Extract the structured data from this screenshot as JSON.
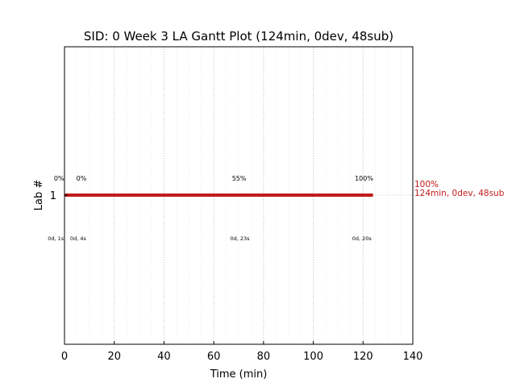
{
  "chart_data": {
    "type": "bar",
    "title": "SID: 0 Week 3 LA Gantt Plot (124min, 0dev, 48sub)",
    "xlabel": "Time (min)",
    "ylabel": "Lab #",
    "xlim": [
      0,
      140
    ],
    "xticks": [
      0,
      20,
      40,
      60,
      80,
      100,
      120,
      140
    ],
    "grid": true,
    "categories": [
      "1"
    ],
    "bars": [
      {
        "lab": "1",
        "start": 0,
        "end": 124,
        "color": "#c21b1b"
      }
    ],
    "end_label": {
      "lines": [
        "100%",
        "124min, 0dev, 48sub"
      ],
      "color": "#c21b1b"
    },
    "progress_labels": [
      {
        "x": -2.2,
        "text": "0%"
      },
      {
        "x": 6.8,
        "text": "0%"
      },
      {
        "x": 70.2,
        "text": "55%"
      },
      {
        "x": 120.4,
        "text": "100%"
      }
    ],
    "duration_labels": [
      {
        "x": -3.5,
        "text": "0d, 1s"
      },
      {
        "x": 5.5,
        "text": "0d, 4s"
      },
      {
        "x": 70.5,
        "text": "0d, 23s"
      },
      {
        "x": 119.5,
        "text": "0d, 20s"
      }
    ]
  }
}
